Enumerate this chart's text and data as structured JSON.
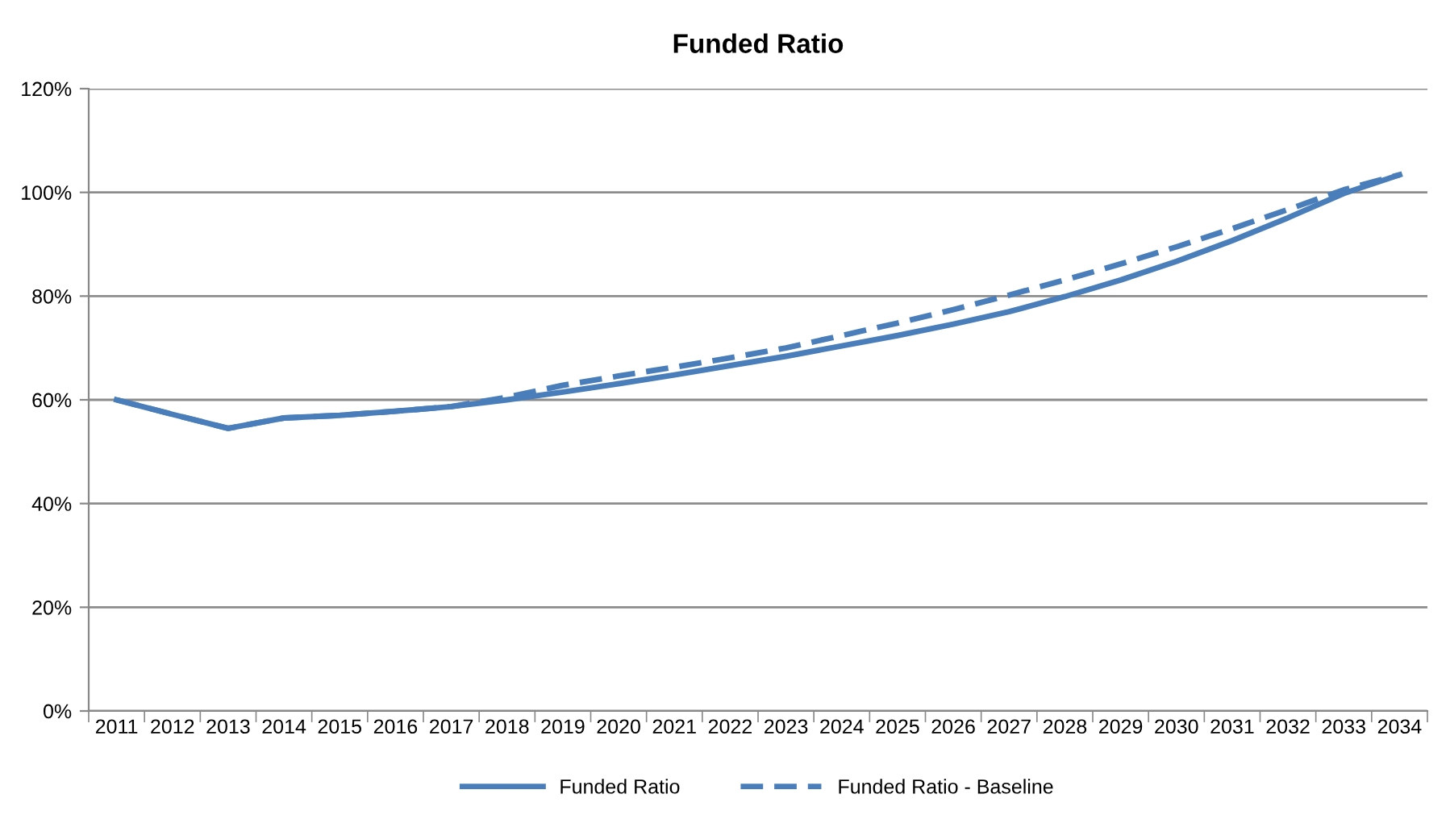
{
  "chart_data": {
    "type": "line",
    "title": "Funded Ratio",
    "categories": [
      "2011",
      "2012",
      "2013",
      "2014",
      "2015",
      "2016",
      "2017",
      "2018",
      "2019",
      "2020",
      "2021",
      "2022",
      "2023",
      "2024",
      "2025",
      "2026",
      "2027",
      "2028",
      "2029",
      "2030",
      "2031",
      "2032",
      "2033",
      "2034"
    ],
    "series": [
      {
        "name": "Funded Ratio",
        "color": "#4a7ebb",
        "line_style": "solid",
        "values": [
          60.0,
          57.2,
          54.5,
          56.5,
          57.0,
          57.8,
          58.7,
          60.0,
          61.5,
          63.1,
          64.8,
          66.6,
          68.4,
          70.4,
          72.4,
          74.6,
          77.0,
          79.9,
          83.1,
          86.7,
          90.7,
          95.1,
          99.8,
          103.4
        ]
      },
      {
        "name": "Funded Ratio - Baseline",
        "color": "#4a7ebb",
        "line_style": "dashed",
        "values": [
          60.0,
          57.2,
          54.5,
          56.5,
          57.0,
          57.8,
          58.7,
          60.5,
          62.8,
          64.6,
          66.3,
          68.1,
          70.0,
          72.4,
          74.8,
          77.4,
          80.2,
          83.1,
          86.2,
          89.5,
          93.0,
          96.7,
          100.5,
          103.4
        ]
      }
    ],
    "ylim": [
      0,
      120
    ],
    "yticks": [
      {
        "value": 0,
        "label": "0%"
      },
      {
        "value": 20,
        "label": "20%"
      },
      {
        "value": 40,
        "label": "40%"
      },
      {
        "value": 60,
        "label": "60%"
      },
      {
        "value": 80,
        "label": "80%"
      },
      {
        "value": 100,
        "label": "100%"
      },
      {
        "value": 120,
        "label": "120%"
      }
    ],
    "grid": "y",
    "legend": "bottom",
    "marker": "none"
  }
}
